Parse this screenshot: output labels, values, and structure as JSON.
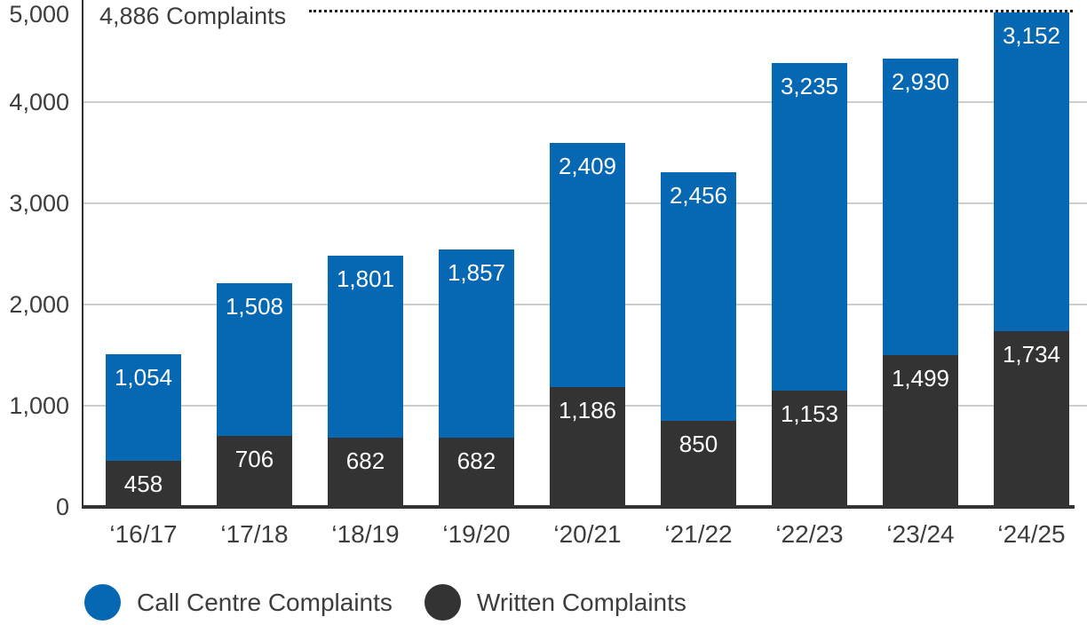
{
  "chart_data": {
    "type": "bar",
    "stacked": true,
    "title": "",
    "xlabel": "",
    "ylabel": "",
    "categories": [
      "‘16/17",
      "‘17/18",
      "‘18/19",
      "‘19/20",
      "‘20/21",
      "‘21/22",
      "‘22/23",
      "‘23/24",
      "‘24/25"
    ],
    "series": [
      {
        "name": "Call Centre Complaints",
        "color": "#0668b2",
        "values": [
          1054,
          1508,
          1801,
          1857,
          2409,
          2456,
          3235,
          2930,
          3152
        ]
      },
      {
        "name": "Written Complaints",
        "color": "#333333",
        "values": [
          458,
          706,
          682,
          682,
          1186,
          850,
          1153,
          1499,
          1734
        ]
      }
    ],
    "ylim": [
      0,
      5000
    ],
    "y_ticks": [
      0,
      1000,
      2000,
      3000,
      4000,
      5000
    ],
    "grid": true,
    "legend_position": "bottom",
    "annotation": {
      "text": "4,886 Complaints",
      "value": 4886,
      "line_style": "dotted"
    }
  },
  "colors": {
    "call_centre": "#0668b2",
    "written": "#333333",
    "gridline": "#cccccc",
    "axis": "#333333",
    "text": "#3d3d3d",
    "bar_label": "#ffffff"
  }
}
